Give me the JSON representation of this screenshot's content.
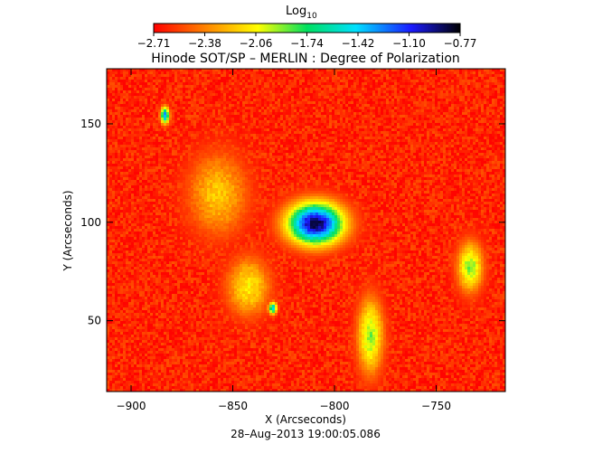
{
  "chart_data": {
    "type": "heatmap",
    "title": "Hinode SOT/SP – MERLIN : Degree of Polarization",
    "colorbar": {
      "label_main": "Log",
      "label_sub": "10",
      "ticks": [
        "-2.71",
        "-2.38",
        "-2.06",
        "-1.74",
        "-1.42",
        "-1.10",
        "-0.77"
      ],
      "range": [
        -2.71,
        -0.77
      ],
      "colors": [
        "#ff0000",
        "#ff8c00",
        "#ffff00",
        "#00e060",
        "#00e0ff",
        "#1a1aff",
        "#000000"
      ]
    },
    "xlabel": "X (Arcseconds)",
    "ylabel": "Y (Arcseconds)",
    "xlim": [
      -912,
      -716
    ],
    "ylim": [
      14,
      178
    ],
    "xticks": [
      {
        "value": -900,
        "label": "−900"
      },
      {
        "value": -850,
        "label": "−850"
      },
      {
        "value": -800,
        "label": "−800"
      },
      {
        "value": -750,
        "label": "−750"
      }
    ],
    "yticks": [
      {
        "value": 50,
        "label": "50"
      },
      {
        "value": 100,
        "label": "100"
      },
      {
        "value": 150,
        "label": "150"
      }
    ],
    "features": [
      {
        "x": -810,
        "y": 100,
        "rx": 13,
        "ry": 10,
        "level": -0.85
      },
      {
        "x": -884,
        "y": 155,
        "rx": 2,
        "ry": 4,
        "level": -1.3
      },
      {
        "x": -831,
        "y": 57,
        "rx": 2,
        "ry": 3,
        "level": -1.5
      },
      {
        "x": -783,
        "y": 43,
        "rx": 6,
        "ry": 18,
        "level": -1.9
      },
      {
        "x": -734,
        "y": 78,
        "rx": 6,
        "ry": 12,
        "level": -1.9
      },
      {
        "x": -858,
        "y": 115,
        "rx": 14,
        "ry": 20,
        "level": -2.2
      },
      {
        "x": -843,
        "y": 68,
        "rx": 10,
        "ry": 14,
        "level": -2.1
      }
    ],
    "grid": false
  },
  "footer": {
    "timestamp": "28–Aug–2013 19:00:05.086"
  }
}
